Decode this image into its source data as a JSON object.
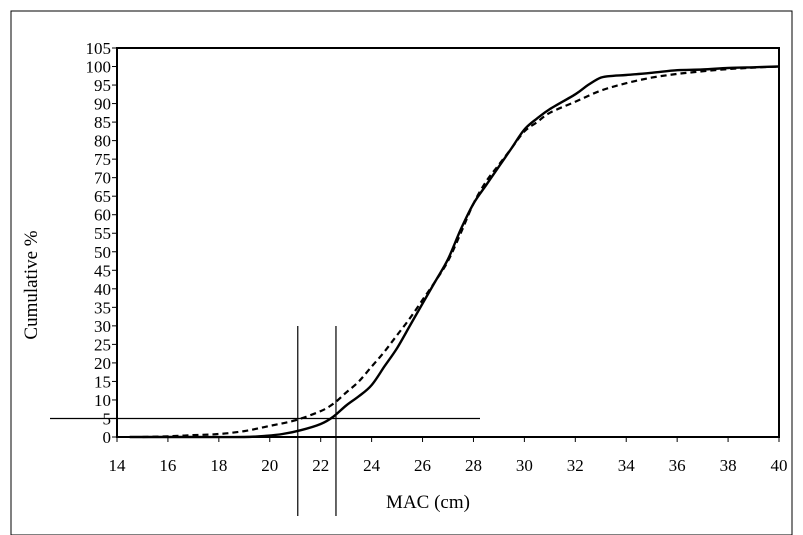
{
  "chart_data": {
    "type": "line",
    "title": "",
    "xlabel": "MAC (cm)",
    "ylabel": "Cumulative  %",
    "xlim": [
      14,
      40
    ],
    "ylim": [
      0,
      105
    ],
    "x_ticks": [
      14,
      16,
      18,
      20,
      22,
      24,
      26,
      28,
      30,
      32,
      34,
      36,
      38,
      40
    ],
    "y_ticks": [
      0,
      5,
      10,
      15,
      20,
      25,
      30,
      35,
      40,
      45,
      50,
      55,
      60,
      65,
      70,
      75,
      80,
      85,
      90,
      95,
      100,
      105
    ],
    "grid": false,
    "legend": "none",
    "series": [
      {
        "style": "solid",
        "color": "#000000",
        "points": [
          [
            14.5,
            0
          ],
          [
            17,
            0
          ],
          [
            19,
            0
          ],
          [
            19.8,
            0.3
          ],
          [
            20.5,
            0.8
          ],
          [
            21.2,
            1.8
          ],
          [
            22,
            3.5
          ],
          [
            22.5,
            5.5
          ],
          [
            23,
            8.5
          ],
          [
            23.5,
            11
          ],
          [
            24,
            14
          ],
          [
            24.5,
            19
          ],
          [
            25,
            24
          ],
          [
            25.5,
            30
          ],
          [
            26,
            36
          ],
          [
            26.5,
            42
          ],
          [
            27,
            48
          ],
          [
            27.5,
            56
          ],
          [
            28,
            63
          ],
          [
            28.5,
            68
          ],
          [
            29,
            73
          ],
          [
            29.5,
            78
          ],
          [
            30,
            83
          ],
          [
            30.5,
            86
          ],
          [
            31,
            88.5
          ],
          [
            32,
            92.5
          ],
          [
            32.5,
            95
          ],
          [
            33,
            97
          ],
          [
            33.5,
            97.5
          ],
          [
            34,
            97.7
          ],
          [
            35,
            98.3
          ],
          [
            36,
            99
          ],
          [
            37,
            99.2
          ],
          [
            38,
            99.6
          ],
          [
            39,
            99.8
          ],
          [
            40,
            100
          ]
        ]
      },
      {
        "style": "dashed",
        "color": "#000000",
        "points": [
          [
            15,
            0
          ],
          [
            16,
            0.2
          ],
          [
            17,
            0.5
          ],
          [
            18,
            0.8
          ],
          [
            19,
            1.6
          ],
          [
            20,
            3
          ],
          [
            21,
            4.5
          ],
          [
            22,
            7
          ],
          [
            22.5,
            9
          ],
          [
            23,
            12
          ],
          [
            23.5,
            15
          ],
          [
            24,
            19
          ],
          [
            24.5,
            23
          ],
          [
            25,
            27.5
          ],
          [
            25.5,
            32
          ],
          [
            26,
            37
          ],
          [
            26.5,
            42
          ],
          [
            27,
            47.5
          ],
          [
            27.5,
            55
          ],
          [
            28,
            63
          ],
          [
            28.5,
            69
          ],
          [
            29,
            73.5
          ],
          [
            29.5,
            78
          ],
          [
            30,
            82.5
          ],
          [
            30.5,
            85
          ],
          [
            31,
            87.5
          ],
          [
            32,
            90.5
          ],
          [
            33,
            93.5
          ],
          [
            34,
            95.5
          ],
          [
            35,
            97
          ],
          [
            36,
            98
          ],
          [
            37,
            98.7
          ],
          [
            38,
            99.3
          ],
          [
            39,
            99.7
          ],
          [
            40,
            100
          ]
        ]
      }
    ],
    "reference_lines": [
      {
        "orientation": "horizontal",
        "value": 5
      },
      {
        "orientation": "vertical",
        "value": 21.1
      },
      {
        "orientation": "vertical",
        "value": 22.6
      }
    ]
  }
}
